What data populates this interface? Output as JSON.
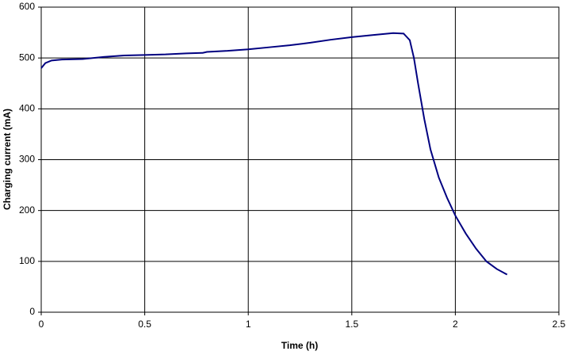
{
  "chart_data": {
    "type": "line",
    "x_label": "Time (h)",
    "y_label": "Charging current (mA)",
    "x": [
      0,
      0.02,
      0.05,
      0.1,
      0.2,
      0.3,
      0.4,
      0.5,
      0.6,
      0.7,
      0.78,
      0.8,
      0.9,
      1.0,
      1.1,
      1.2,
      1.3,
      1.4,
      1.5,
      1.6,
      1.7,
      1.75,
      1.78,
      1.8,
      1.82,
      1.85,
      1.88,
      1.92,
      1.96,
      2.0,
      2.05,
      2.1,
      2.15,
      2.2,
      2.25
    ],
    "series": [
      {
        "color": "#000080",
        "values": [
          480,
          490,
          495,
          497,
          498,
          502,
          505,
          506,
          507,
          509,
          510,
          512,
          514,
          517,
          521,
          525,
          530,
          536,
          541,
          545,
          549,
          548,
          535,
          500,
          450,
          380,
          320,
          265,
          225,
          190,
          155,
          125,
          100,
          85,
          74
        ]
      }
    ],
    "xlim": [
      0,
      2.5
    ],
    "xticks": [
      0,
      0.5,
      1,
      1.5,
      2,
      2.5
    ],
    "ylim": [
      0,
      600
    ],
    "yticks": [
      0,
      100,
      200,
      300,
      400,
      500,
      600
    ],
    "grid": true
  }
}
